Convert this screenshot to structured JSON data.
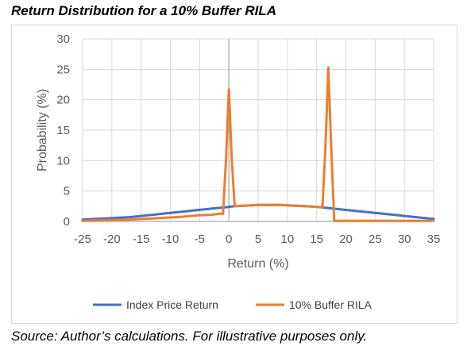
{
  "title": "Return Distribution for a 10% Buffer RILA",
  "source": "Source: Author’s calculations. For illustrative purposes only.",
  "colors": {
    "index": "#4472c4",
    "rila": "#ed7d31",
    "grid": "#d9d9d9",
    "zero_line": "#a6a6a6"
  },
  "chart_data": {
    "type": "line",
    "xlabel": "Return (%)",
    "ylabel": "Probability (%)",
    "xlim": [
      -25,
      35
    ],
    "ylim": [
      0,
      30
    ],
    "x_ticks": [
      -25,
      -20,
      -15,
      -10,
      -5,
      0,
      5,
      10,
      15,
      20,
      25,
      30,
      35
    ],
    "y_ticks": [
      0,
      5,
      10,
      15,
      20,
      25,
      30
    ],
    "grid": true,
    "legend_position": "bottom",
    "series": [
      {
        "name": "Index Price Return",
        "color": "#4472c4",
        "x": [
          -25,
          -23,
          -21,
          -19,
          -17,
          -15,
          -13,
          -11,
          -9,
          -7,
          -5,
          -3,
          -1,
          0,
          1,
          3,
          5,
          7,
          9,
          11,
          13,
          15,
          17,
          19,
          21,
          23,
          25,
          27,
          29,
          31,
          33,
          35
        ],
        "y": [
          0.3,
          0.4,
          0.5,
          0.6,
          0.7,
          0.9,
          1.1,
          1.3,
          1.5,
          1.7,
          1.9,
          2.1,
          2.3,
          2.4,
          2.5,
          2.6,
          2.7,
          2.7,
          2.7,
          2.6,
          2.5,
          2.4,
          2.2,
          2.0,
          1.8,
          1.6,
          1.4,
          1.2,
          1.0,
          0.8,
          0.6,
          0.4
        ]
      },
      {
        "name": "10% Buffer RILA",
        "color": "#ed7d31",
        "x": [
          -25,
          -23,
          -21,
          -19,
          -17,
          -15,
          -13,
          -11,
          -9,
          -7,
          -5,
          -3,
          -1.2,
          -1,
          -0.5,
          0,
          0.5,
          1,
          3,
          5,
          7,
          9,
          11,
          13,
          15,
          16,
          16.5,
          17,
          17.5,
          18,
          19,
          21,
          25,
          30,
          35
        ],
        "y": [
          0.1,
          0.15,
          0.2,
          0.25,
          0.3,
          0.4,
          0.5,
          0.6,
          0.7,
          0.85,
          1.0,
          1.1,
          1.3,
          1.2,
          10.0,
          21.7,
          10.0,
          2.5,
          2.6,
          2.7,
          2.7,
          2.7,
          2.6,
          2.5,
          2.4,
          2.3,
          12.0,
          25.3,
          12.0,
          0.1,
          0.1,
          0.1,
          0.1,
          0.1,
          0.1
        ]
      }
    ]
  }
}
